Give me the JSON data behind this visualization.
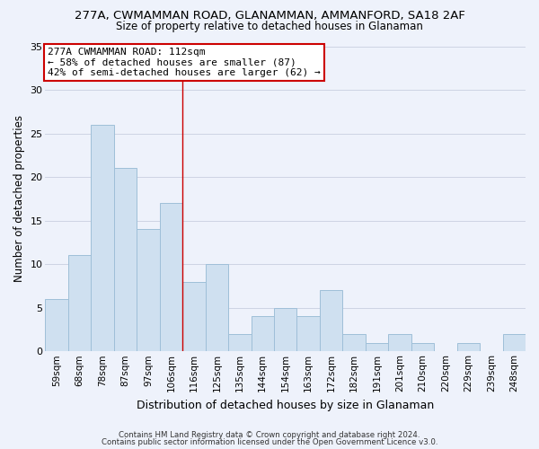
{
  "title_line1": "277A, CWMAMMAN ROAD, GLANAMMAN, AMMANFORD, SA18 2AF",
  "title_line2": "Size of property relative to detached houses in Glanaman",
  "xlabel": "Distribution of detached houses by size in Glanaman",
  "ylabel": "Number of detached properties",
  "bar_labels": [
    "59sqm",
    "68sqm",
    "78sqm",
    "87sqm",
    "97sqm",
    "106sqm",
    "116sqm",
    "125sqm",
    "135sqm",
    "144sqm",
    "154sqm",
    "163sqm",
    "172sqm",
    "182sqm",
    "191sqm",
    "201sqm",
    "210sqm",
    "220sqm",
    "229sqm",
    "239sqm",
    "248sqm"
  ],
  "bar_values": [
    6,
    11,
    26,
    21,
    14,
    17,
    8,
    10,
    2,
    4,
    5,
    4,
    7,
    2,
    1,
    2,
    1,
    0,
    1,
    0,
    2
  ],
  "bar_color": "#cfe0f0",
  "bar_edgecolor": "#9fbfd8",
  "vline_x_index": 6,
  "vline_color": "#cc0000",
  "ylim": [
    0,
    35
  ],
  "yticks": [
    0,
    5,
    10,
    15,
    20,
    25,
    30,
    35
  ],
  "annotation_title": "277A CWMAMMAN ROAD: 112sqm",
  "annotation_line2": "← 58% of detached houses are smaller (87)",
  "annotation_line3": "42% of semi-detached houses are larger (62) →",
  "annotation_box_facecolor": "#ffffff",
  "annotation_box_edgecolor": "#cc0000",
  "footer_line1": "Contains HM Land Registry data © Crown copyright and database right 2024.",
  "footer_line2": "Contains public sector information licensed under the Open Government Licence v3.0.",
  "fig_facecolor": "#eef2fb",
  "plot_facecolor": "#eef2fb",
  "grid_color": "#c8cfe0"
}
